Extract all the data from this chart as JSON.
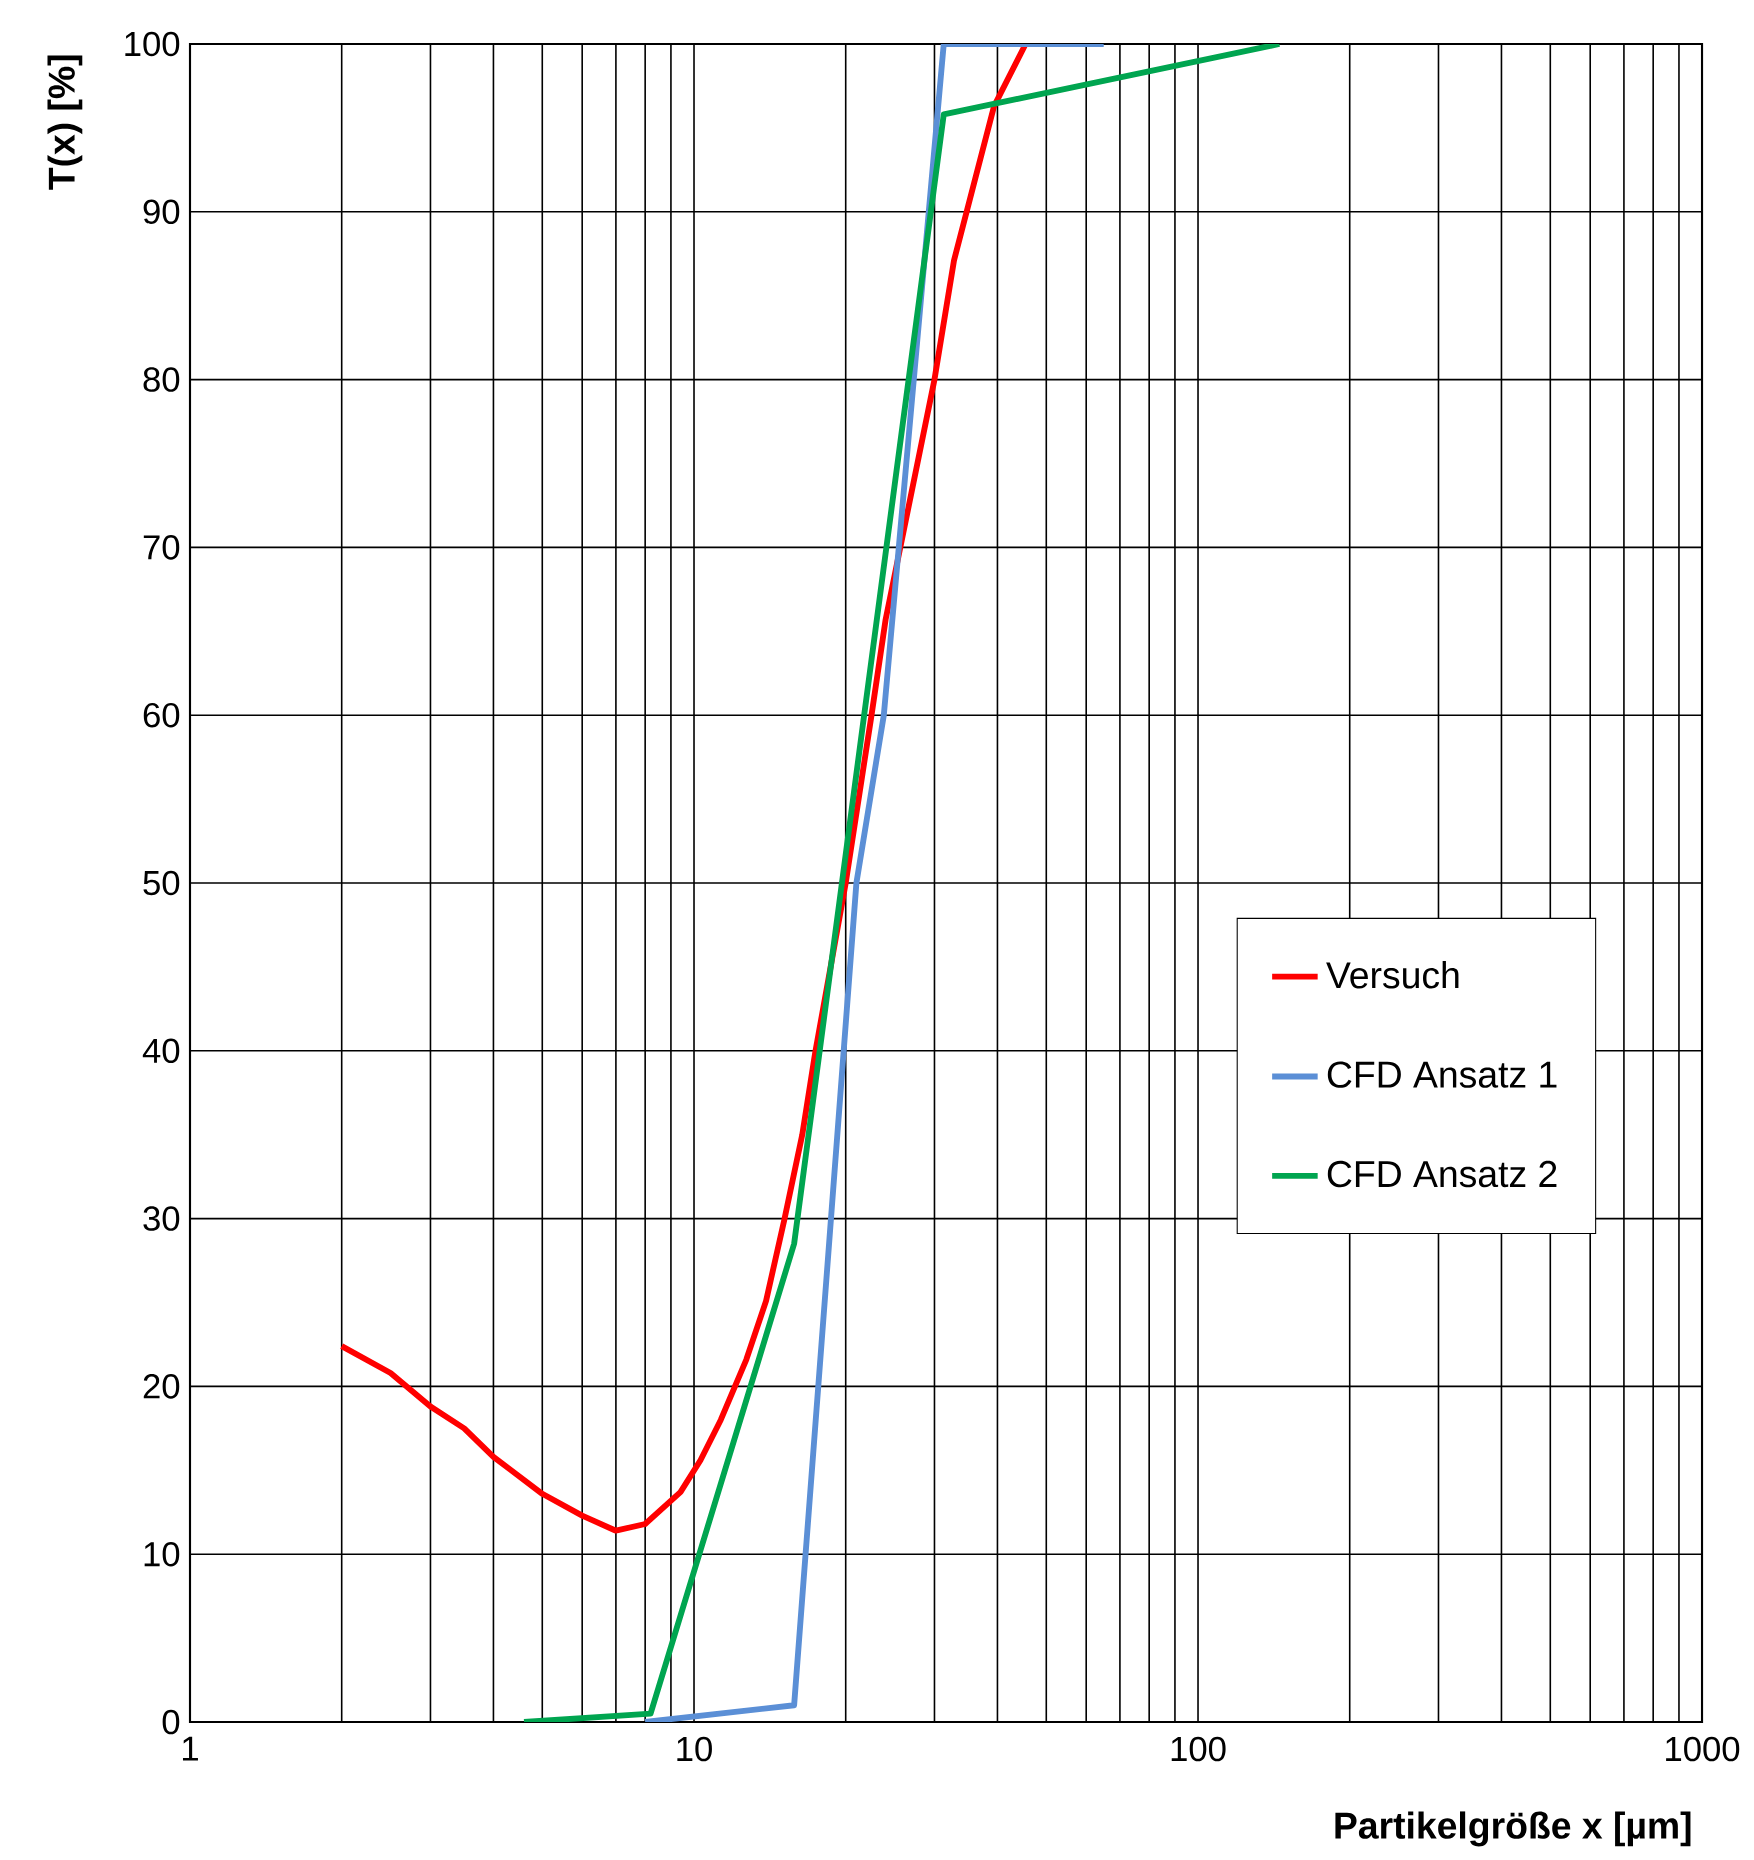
{
  "chart_data": {
    "type": "line",
    "xlabel": "Partikelgröße x [µm]",
    "ylabel": "T(x) [%]",
    "log": "x",
    "xlim": [
      1,
      1000
    ],
    "ylim": [
      0,
      100
    ],
    "xticks": [
      1,
      10,
      100,
      1000
    ],
    "yticks": [
      0,
      10,
      20,
      30,
      40,
      50,
      60,
      70,
      80,
      90,
      100
    ],
    "grid": true,
    "legend": "right",
    "series": [
      {
        "name": "Versuch",
        "color": "#ff0000",
        "x": [
          2,
          2.5,
          3,
          3.5,
          4,
          5,
          6,
          7,
          8,
          9.4,
          10.3,
          11.3,
          12.7,
          13.9,
          15.1,
          16.4,
          17.4,
          20,
          22.5,
          24,
          30,
          32.8,
          39.4,
          45.5
        ],
        "values": [
          22.4,
          20.8,
          18.8,
          17.5,
          15.8,
          13.6,
          12.3,
          11.4,
          11.8,
          13.7,
          15.6,
          18,
          21.6,
          25.1,
          29.9,
          35,
          39.9,
          50,
          60,
          65.7,
          80,
          87.1,
          96.3,
          100
        ]
      },
      {
        "name": "CFD Ansatz 1",
        "color": "#5b8fd6",
        "x": [
          8,
          15.8,
          18.7,
          21,
          23.8,
          31.3,
          65
        ],
        "values": [
          0,
          1,
          30,
          50,
          60,
          100,
          100
        ]
      },
      {
        "name": "CFD Ansatz 2",
        "color": "#00a550",
        "x": [
          4.6,
          8.2,
          15.8,
          31.3,
          145
        ],
        "values": [
          0,
          0.5,
          28.5,
          95.8,
          100
        ]
      }
    ]
  }
}
